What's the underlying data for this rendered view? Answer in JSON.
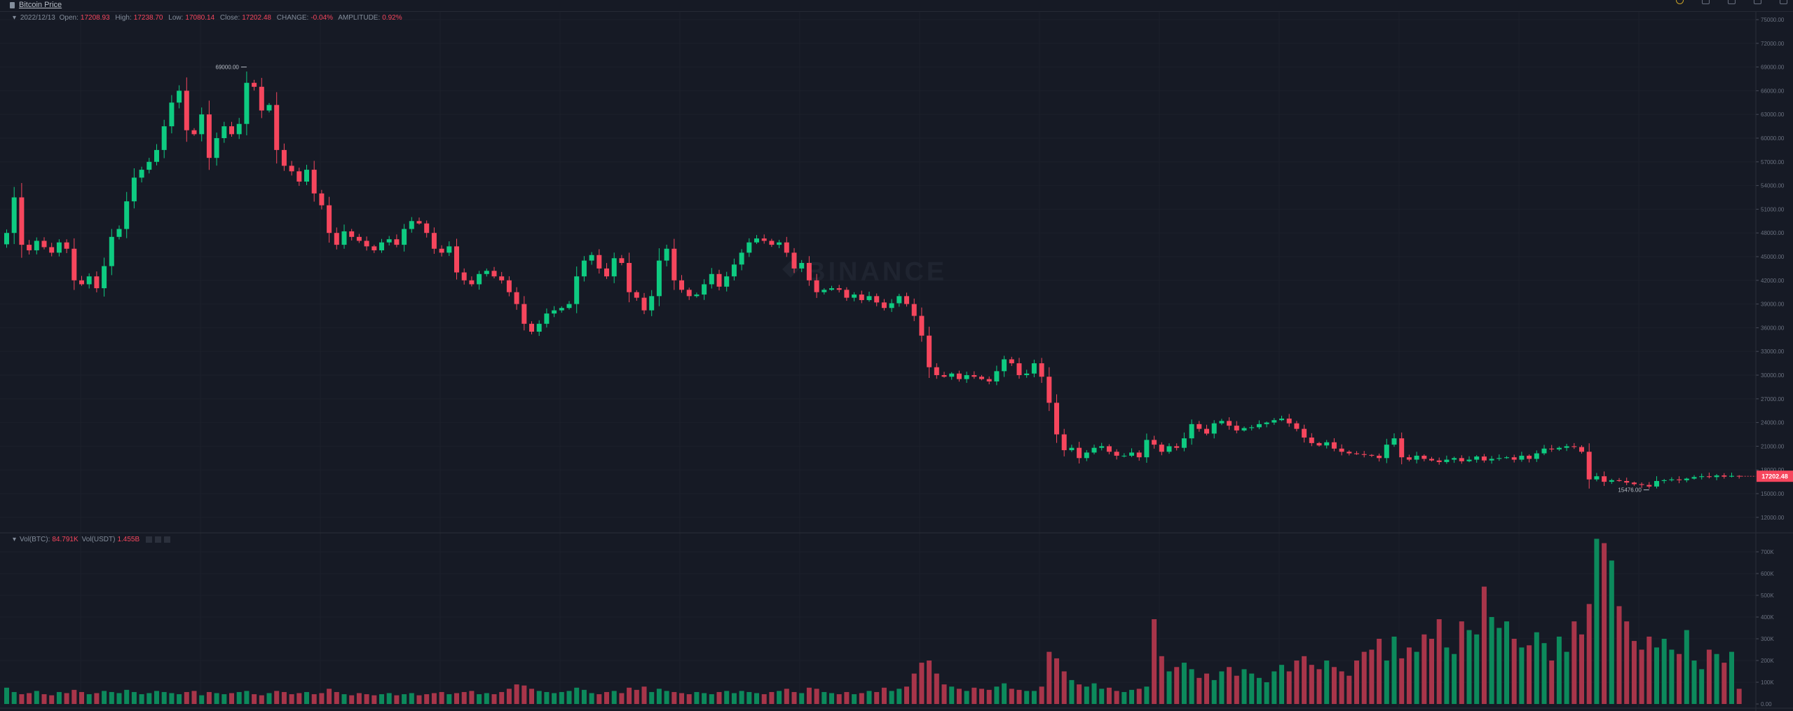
{
  "header": {
    "title": "Bitcoin Price",
    "date": "2022/12/13",
    "open_label": "Open:",
    "open": "17208.93",
    "high_label": "High:",
    "high": "17238.70",
    "low_label": "Low:",
    "low": "17080.14",
    "close_label": "Close:",
    "close": "17202.48",
    "change_label": "CHANGE:",
    "change": "-0.04%",
    "amplitude_label": "AMPLITUDE:",
    "amplitude": "0.92%"
  },
  "volume_legend": {
    "btc_label": "Vol(BTC):",
    "btc": "84.791K",
    "usdt_label": "Vol(USDT)",
    "usdt": "1.455B"
  },
  "watermark": "BINANCE",
  "colors": {
    "up": "#0ecb81",
    "down": "#f6465d",
    "background": "#161a25"
  },
  "price_axis_ticks": [
    "75000.00",
    "72000.00",
    "69000.00",
    "66000.00",
    "63000.00",
    "60000.00",
    "57000.00",
    "54000.00",
    "51000.00",
    "48000.00",
    "45000.00",
    "42000.00",
    "39000.00",
    "36000.00",
    "33000.00",
    "30000.00",
    "27000.00",
    "24000.00",
    "21000.00",
    "18000.00",
    "15000.00",
    "12000.00"
  ],
  "volume_axis_ticks": [
    "700K",
    "600K",
    "500K",
    "400K",
    "300K",
    "200K",
    "100K",
    "0.00"
  ],
  "max_marker": "69000.00",
  "min_marker": "15476.00",
  "last_price_tag": "17202.48",
  "chart_data": {
    "type": "candlestick",
    "closes": [
      48000,
      52500,
      46500,
      45800,
      47000,
      46200,
      45500,
      46800,
      46000,
      42000,
      41500,
      42500,
      41000,
      43800,
      47500,
      48500,
      52000,
      55000,
      56000,
      57000,
      58500,
      61500,
      64500,
      66000,
      61000,
      60500,
      63000,
      57500,
      60000,
      61500,
      60500,
      61800,
      67000,
      66500,
      63500,
      64200,
      58500,
      56500,
      55800,
      54500,
      56000,
      53000,
      51500,
      48000,
      46500,
      48200,
      47500,
      47000,
      46300,
      45800,
      46800,
      47200,
      46500,
      48500,
      49500,
      49200,
      48000,
      46000,
      45500,
      46300,
      43000,
      42000,
      41500,
      42800,
      43200,
      42500,
      42000,
      40500,
      39000,
      36500,
      35500,
      36500,
      37800,
      38200,
      38500,
      39000,
      42500,
      44500,
      45200,
      43500,
      42500,
      44800,
      44200,
      40500,
      39800,
      38200,
      40000,
      44500,
      46000,
      42000,
      40800,
      40000,
      40200,
      41500,
      42800,
      41200,
      42500,
      44000,
      45500,
      46800,
      47300,
      47000,
      46500,
      46800,
      45500,
      43500,
      44200,
      42000,
      40500,
      40800,
      41000,
      40800,
      39800,
      40200,
      39500,
      40000,
      39200,
      38500,
      39100,
      40000,
      39000,
      37500,
      35000,
      31000,
      30000,
      29800,
      30200,
      29500,
      30000,
      29800,
      29500,
      29200,
      30500,
      32000,
      31500,
      30000,
      30200,
      31500,
      29800,
      26500,
      22500,
      20500,
      20800,
      19500,
      20200,
      20800,
      21000,
      20300,
      19800,
      19800,
      20200,
      19600,
      21800,
      21200,
      20300,
      21000,
      20800,
      22000,
      23800,
      23200,
      22600,
      23900,
      24200,
      23600,
      23000,
      23300,
      23400,
      23800,
      24000,
      24300,
      24500,
      23900,
      23200,
      22100,
      21400,
      21100,
      21500,
      20700,
      20300,
      20100,
      20000,
      19900,
      19800,
      19500,
      21200,
      22000,
      19600,
      19300,
      19800,
      19400,
      19200,
      19000,
      19300,
      19500,
      19100,
      19300,
      19700,
      19200,
      19400,
      19500,
      19600,
      19300,
      19800,
      19400,
      20100,
      20700,
      20600,
      20800,
      21000,
      20900,
      20300,
      16800,
      17200,
      16500,
      16700,
      16600,
      16400,
      16200,
      16100,
      15900,
      16600,
      16700,
      16800,
      16700,
      16900,
      17100,
      17200,
      17100,
      17300,
      17150,
      17250,
      17202.48
    ],
    "volumes_k": [
      75,
      55,
      45,
      50,
      60,
      45,
      40,
      55,
      50,
      65,
      55,
      45,
      50,
      60,
      55,
      50,
      65,
      55,
      45,
      50,
      60,
      55,
      50,
      45,
      55,
      60,
      40,
      55,
      50,
      45,
      50,
      55,
      60,
      45,
      40,
      50,
      60,
      55,
      45,
      50,
      55,
      45,
      50,
      70,
      55,
      45,
      40,
      50,
      45,
      40,
      45,
      50,
      40,
      45,
      50,
      40,
      45,
      50,
      55,
      45,
      50,
      55,
      60,
      45,
      50,
      45,
      55,
      70,
      90,
      85,
      70,
      60,
      55,
      50,
      55,
      60,
      75,
      65,
      50,
      45,
      55,
      60,
      50,
      75,
      65,
      80,
      55,
      70,
      60,
      55,
      50,
      45,
      55,
      50,
      45,
      55,
      60,
      50,
      60,
      55,
      50,
      45,
      55,
      60,
      70,
      55,
      50,
      75,
      70,
      55,
      50,
      45,
      55,
      45,
      50,
      60,
      55,
      75,
      60,
      70,
      80,
      140,
      190,
      200,
      140,
      90,
      80,
      70,
      60,
      75,
      70,
      65,
      80,
      95,
      70,
      65,
      60,
      60,
      80,
      240,
      210,
      150,
      110,
      90,
      80,
      95,
      70,
      75,
      60,
      55,
      65,
      70,
      80,
      390,
      220,
      150,
      170,
      190,
      160,
      120,
      140,
      110,
      150,
      170,
      130,
      160,
      140,
      120,
      100,
      150,
      180,
      150,
      200,
      220,
      180,
      160,
      200,
      170,
      150,
      130,
      200,
      240,
      250,
      300,
      200,
      310,
      210,
      260,
      240,
      320,
      300,
      390,
      260,
      230,
      380,
      340,
      320,
      540,
      400,
      350,
      380,
      300,
      260,
      270,
      330,
      280,
      200,
      310,
      240,
      380,
      320,
      460,
      760,
      740,
      660,
      450,
      380,
      290,
      250,
      310,
      260,
      300,
      250,
      230,
      340,
      200,
      160,
      250,
      230,
      190,
      240,
      70
    ],
    "price_range": [
      12000,
      75000
    ],
    "volume_range_k": [
      0,
      700
    ]
  }
}
